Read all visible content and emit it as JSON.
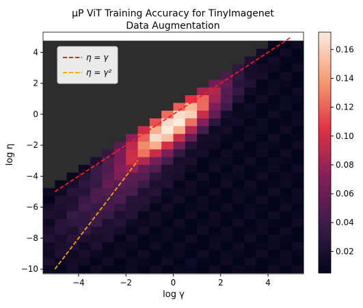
{
  "chart_data": {
    "type": "heatmap",
    "title_line1": "μP ViT Training Accuracy for TinyImagenet",
    "title_line2": "Data Augmentation",
    "xlabel": "log γ",
    "ylabel": "log η",
    "xlim": [
      -5.5,
      5.5
    ],
    "ylim": [
      -10.3,
      5.3
    ],
    "xticks": [
      -4,
      -2,
      0,
      2,
      4
    ],
    "yticks": [
      -10,
      -8,
      -6,
      -4,
      -2,
      0,
      2,
      4
    ],
    "colorbar": {
      "min": 0.005,
      "max": 0.172,
      "ticks": [
        0.02,
        0.04,
        0.06,
        0.08,
        0.1,
        0.12,
        0.14,
        0.16
      ]
    },
    "colors": {
      "diverged": "#2d2d2d",
      "line_eta_gamma": "#ff1a1a",
      "line_eta_gamma2": "#ffa500"
    },
    "grid": {
      "columns": 22,
      "rows": 30,
      "x_start": -5.5,
      "y_start": -10.25,
      "cell_w": 0.5,
      "cell_h": 0.5
    },
    "heat_model": "accuracy peaks near log η = log γ - 0.5, centered at log γ ≈ 0; cells above log η > log γ + 0.5 diverged (dark gray)",
    "lines": [
      {
        "name": "η = γ",
        "x": [
          -5,
          5
        ],
        "y": [
          -5,
          5
        ]
      },
      {
        "name": "η = γ²",
        "x": [
          -5,
          -1.5
        ],
        "y": [
          -10,
          -3
        ]
      }
    ],
    "legend": {
      "placement": "top-left",
      "entries": [
        "η = γ",
        "η = γ²"
      ]
    }
  }
}
